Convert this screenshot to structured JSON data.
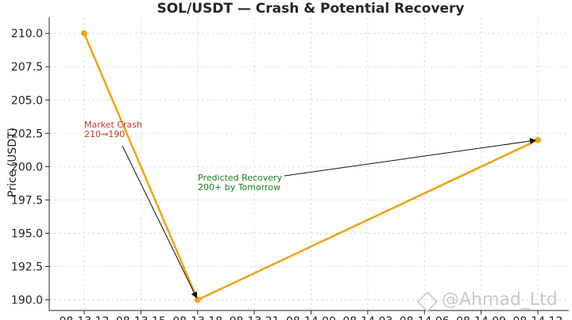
{
  "chart_data": {
    "type": "line",
    "title": "SOL/USDT — Crash & Potential Recovery",
    "xlabel": "",
    "ylabel": "Price (USDT)",
    "x_tick_labels": [
      "08-13 12",
      "08-13 15",
      "08-13 18",
      "08-13 21",
      "08-14 00",
      "08-14 03",
      "08-14 06",
      "08-14 09",
      "08-14 12"
    ],
    "x": [
      "08-13 12",
      "08-13 18",
      "08-14 12"
    ],
    "series": [
      {
        "values": [
          210,
          190,
          202
        ],
        "color": "#f0a418"
      }
    ],
    "ylim": [
      189.2,
      211.2
    ],
    "y_ticks": [
      190.0,
      192.5,
      195.0,
      197.5,
      200.0,
      202.5,
      205.0,
      207.5,
      210.0
    ],
    "grid": true,
    "annotations": [
      {
        "lines": [
          "Market Crash",
          "210→190"
        ],
        "color": "#c0392b",
        "points_to": "08-13 18"
      },
      {
        "lines": [
          "Predicted Recovery",
          "200+ by Tomorrow"
        ],
        "color": "#1e7d1e",
        "points_to": "08-14 12"
      }
    ]
  },
  "watermark": "@Ahmad_Ltd"
}
